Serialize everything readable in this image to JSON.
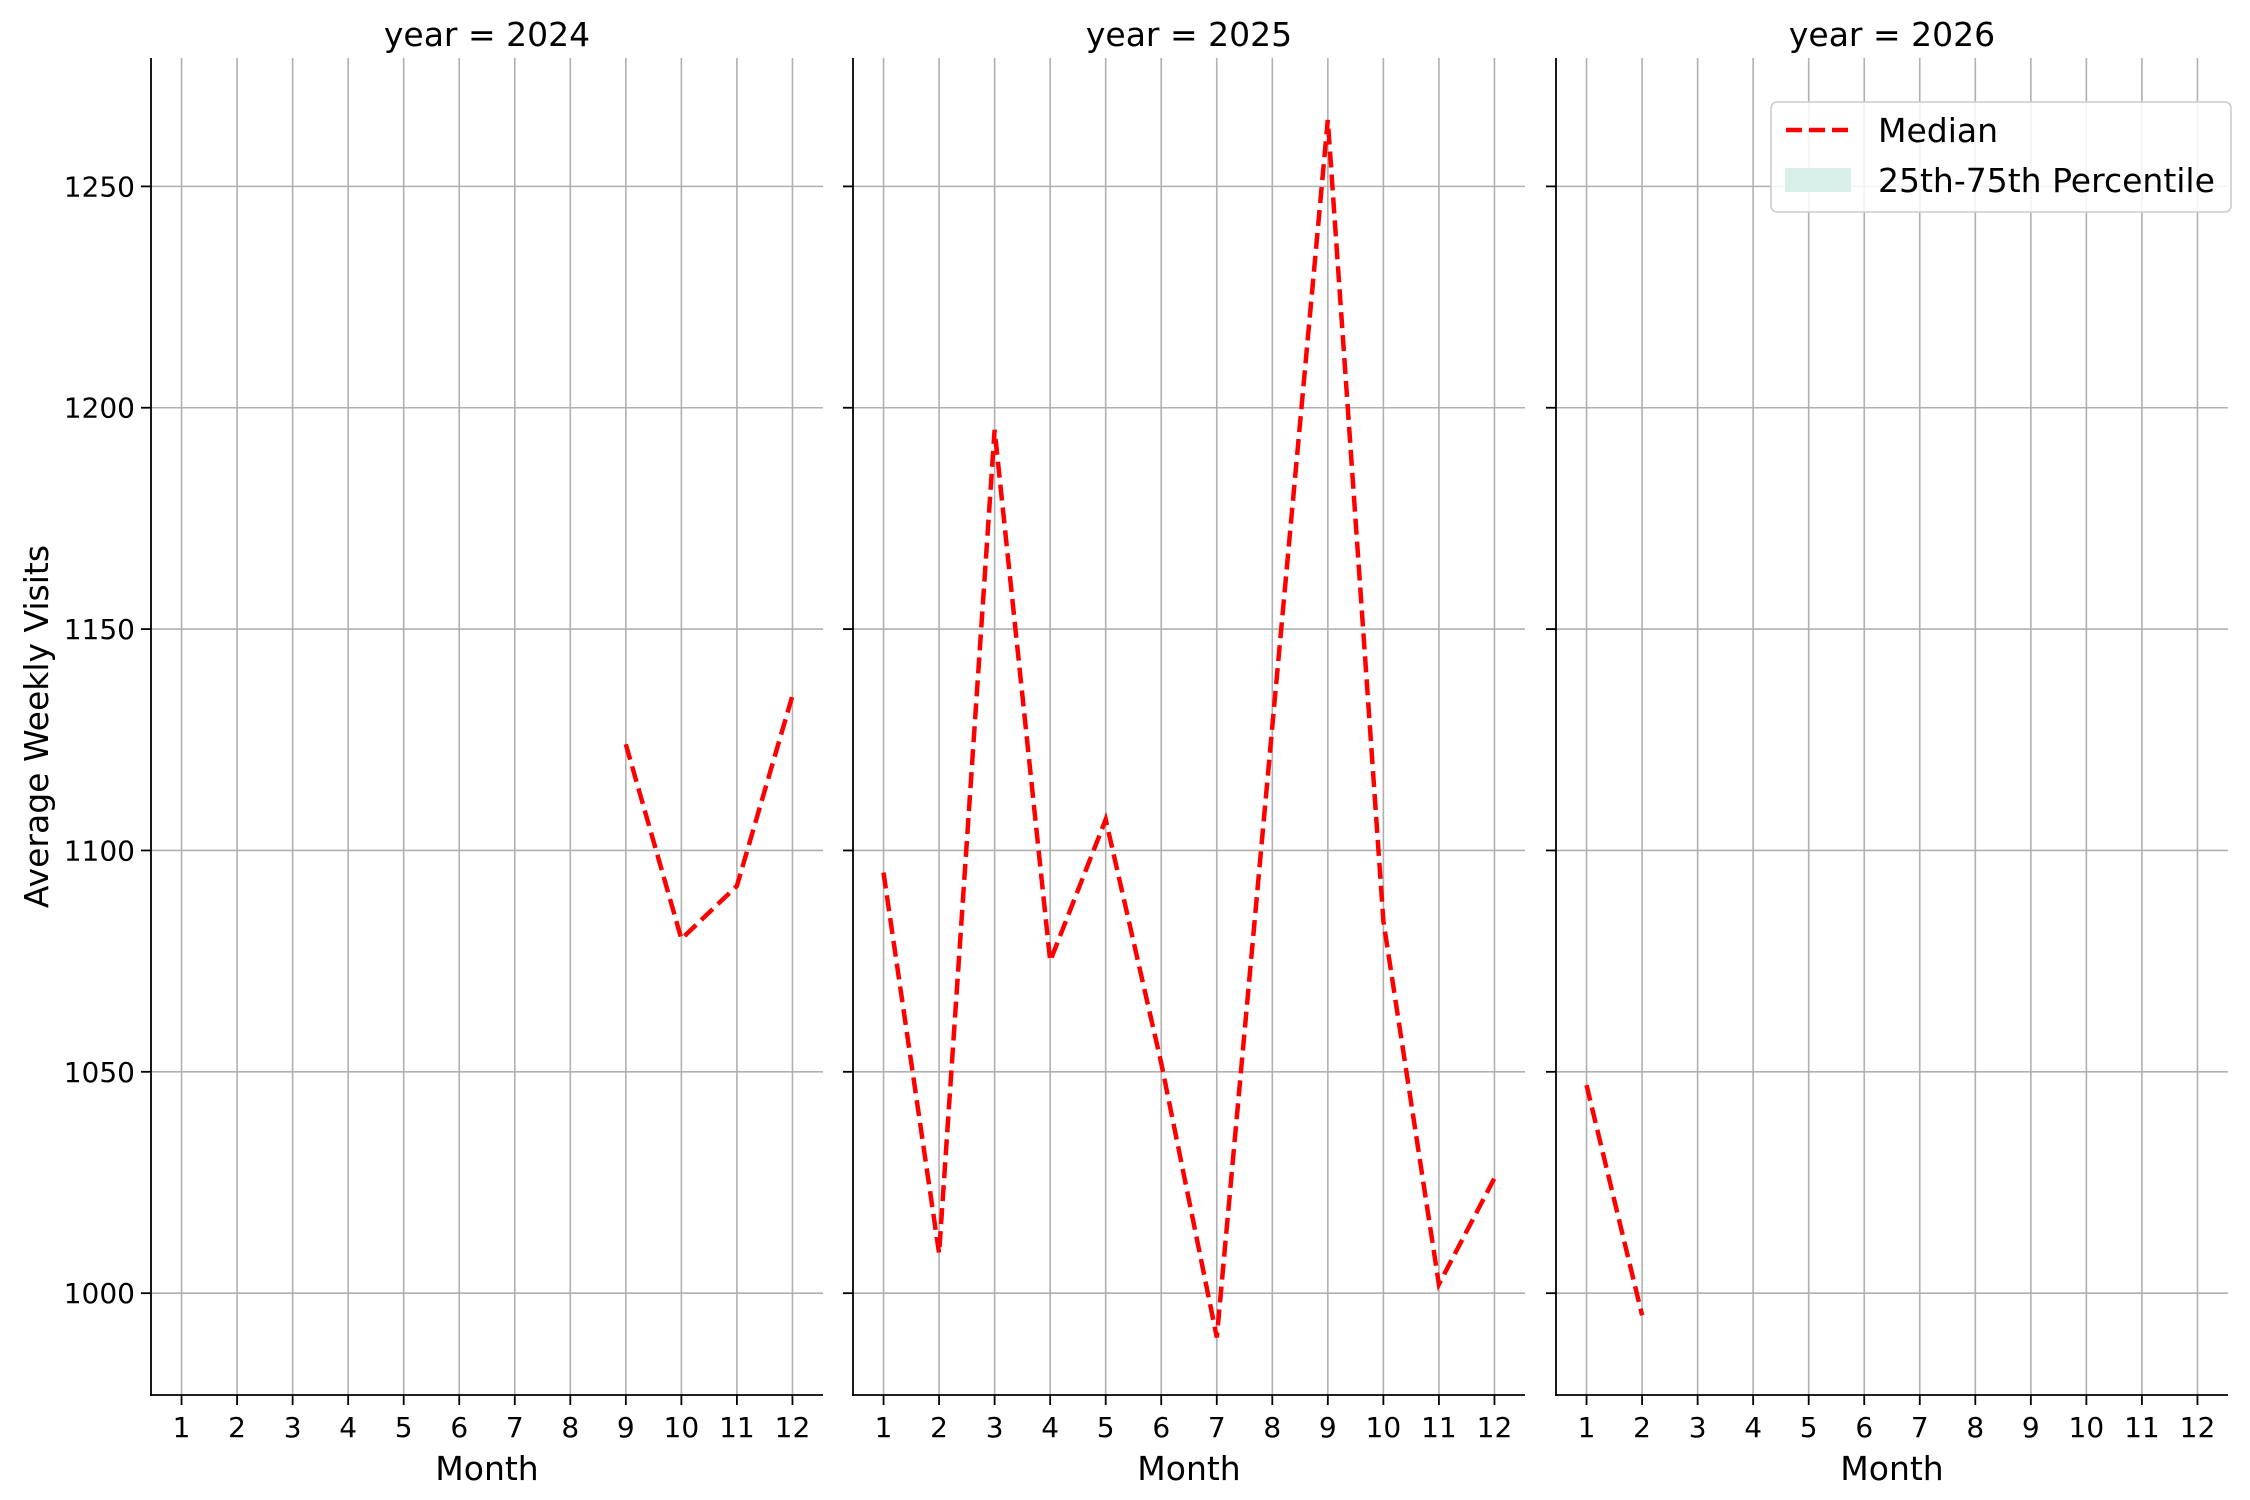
{
  "chart_data": {
    "type": "line",
    "ylabel": "Average Weekly Visits",
    "xlabel": "Month",
    "ylim": [
      977,
      1279
    ],
    "xlim": [
      0.45,
      12.55
    ],
    "yticks": [
      1000,
      1050,
      1100,
      1150,
      1200,
      1250
    ],
    "xticks": [
      1,
      2,
      3,
      4,
      5,
      6,
      7,
      8,
      9,
      10,
      11,
      12
    ],
    "grid": true,
    "legend": {
      "placement": "top-right",
      "entries": [
        {
          "label": "Median",
          "style": "dashed-line",
          "color": "#ff0000"
        },
        {
          "label": "25th-75th Percentile",
          "style": "patch",
          "color": "#d8eee8"
        }
      ]
    },
    "colors": {
      "median": "#ff0000",
      "band": "#d8eee8",
      "grid": "#b0b0b0"
    },
    "panels": [
      {
        "title": "year = 2024",
        "series": [
          {
            "name": "Median",
            "x": [
              9,
              10,
              11,
              12
            ],
            "y": [
              1124,
              1080,
              1092,
              1135
            ]
          }
        ]
      },
      {
        "title": "year = 2025",
        "series": [
          {
            "name": "Median",
            "x": [
              1,
              2,
              3,
              4,
              5,
              6,
              7,
              8,
              9,
              10,
              11,
              12
            ],
            "y": [
              1095,
              1009,
              1195,
              1075,
              1107,
              1052,
              990,
              1128,
              1265,
              1084,
              1002,
              1026
            ]
          }
        ]
      },
      {
        "title": "year = 2026",
        "series": [
          {
            "name": "Median",
            "x": [
              1,
              2
            ],
            "y": [
              1047,
              995
            ]
          }
        ]
      }
    ]
  }
}
